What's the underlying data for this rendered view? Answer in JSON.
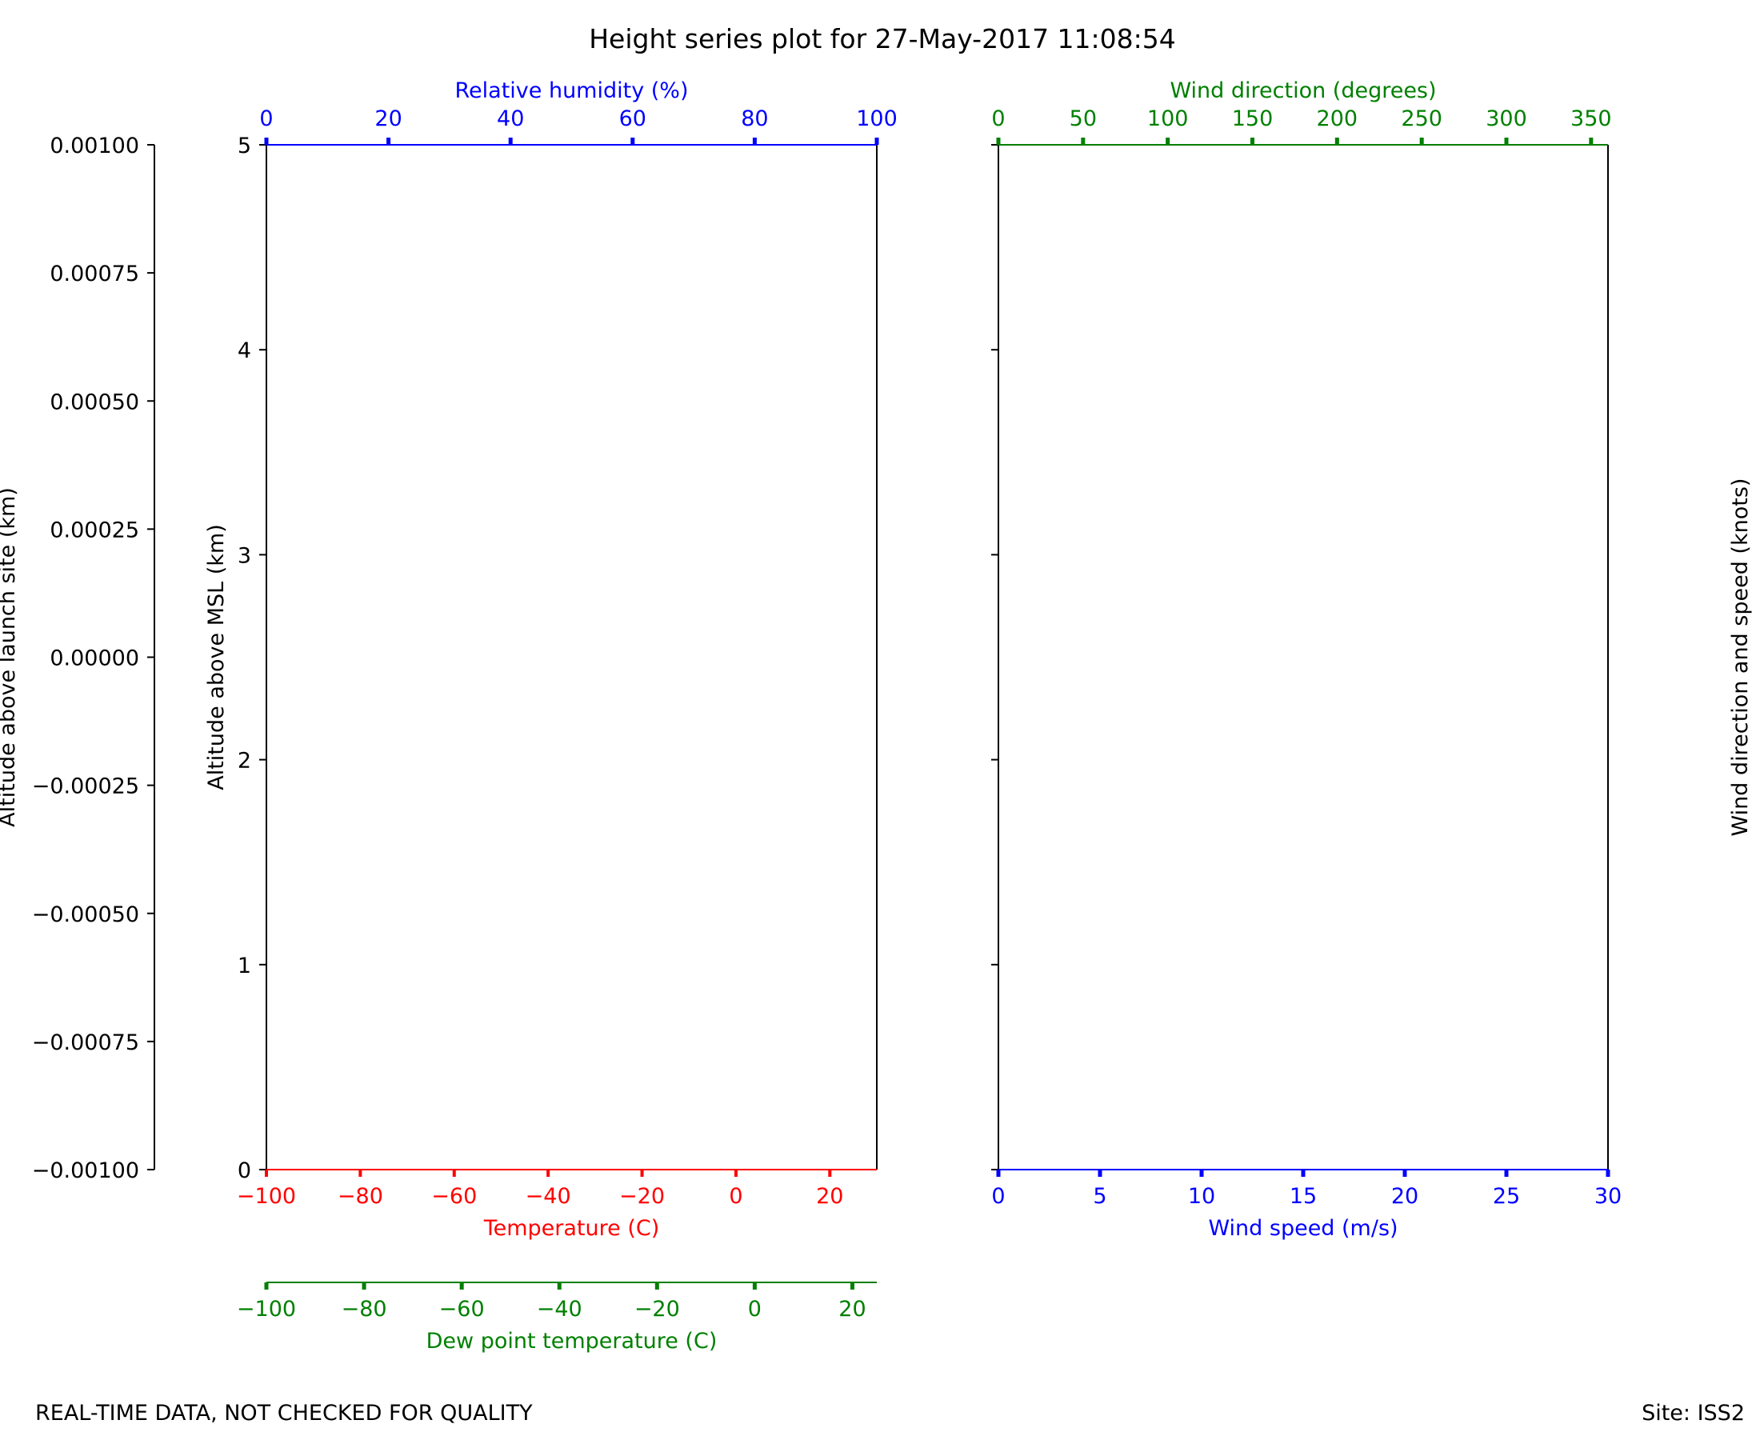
{
  "title": "Height series plot for 27-May-2017 11:08:54",
  "footer": {
    "left": "REAL-TIME DATA, NOT CHECKED FOR QUALITY",
    "right": "Site: ISS2"
  },
  "colors": {
    "black": "#000000",
    "red": "#ff0000",
    "blue": "#0000ff",
    "green": "#008000"
  },
  "chart_data": [
    {
      "type": "line",
      "panel": "thermodynamic",
      "series": [],
      "axes": {
        "launch_altitude": {
          "label": "Altitude above launch site (km)",
          "range": [
            -0.001,
            0.001
          ],
          "ticks": [
            -0.001,
            -0.00075,
            -0.0005,
            -0.00025,
            0,
            0.00025,
            0.0005,
            0.00075,
            0.001
          ],
          "tick_labels": [
            "−0.00100",
            "−0.00075",
            "−0.00050",
            "−0.00025",
            "0.00000",
            "0.00025",
            "0.00050",
            "0.00075",
            "0.00100"
          ]
        },
        "msl_altitude": {
          "label": "Altitude above MSL (km)",
          "range": [
            0,
            5
          ],
          "ticks": [
            0,
            1,
            2,
            3,
            4,
            5
          ],
          "tick_labels": [
            "0",
            "1",
            "2",
            "3",
            "4",
            "5"
          ]
        },
        "temperature": {
          "label": "Temperature (C)",
          "range": [
            -100,
            30
          ],
          "ticks": [
            -100,
            -80,
            -60,
            -40,
            -20,
            0,
            20
          ],
          "tick_labels": [
            "−100",
            "−80",
            "−60",
            "−40",
            "−20",
            "0",
            "20"
          ]
        },
        "dew_point": {
          "label": "Dew point temperature (C)",
          "range": [
            -100,
            25
          ],
          "ticks": [
            -100,
            -80,
            -60,
            -40,
            -20,
            0,
            20
          ],
          "tick_labels": [
            "−100",
            "−80",
            "−60",
            "−40",
            "−20",
            "0",
            "20"
          ]
        },
        "relative_humidity": {
          "label": "Relative humidity (%)",
          "range": [
            0,
            100
          ],
          "ticks": [
            0,
            20,
            40,
            60,
            80,
            100
          ],
          "tick_labels": [
            "0",
            "20",
            "40",
            "60",
            "80",
            "100"
          ]
        }
      }
    },
    {
      "type": "line",
      "panel": "wind",
      "series": [],
      "axes": {
        "wind_direction": {
          "label": "Wind direction (degrees)",
          "range": [
            0,
            360
          ],
          "ticks": [
            0,
            50,
            100,
            150,
            200,
            250,
            300,
            350
          ],
          "tick_labels": [
            "0",
            "50",
            "100",
            "150",
            "200",
            "250",
            "300",
            "350"
          ]
        },
        "wind_speed": {
          "label": "Wind speed (m/s)",
          "range": [
            0,
            30
          ],
          "ticks": [
            0,
            5,
            10,
            15,
            20,
            25,
            30
          ],
          "tick_labels": [
            "0",
            "5",
            "10",
            "15",
            "20",
            "25",
            "30"
          ]
        },
        "msl_altitude": {
          "range": [
            0,
            5
          ],
          "ticks": [
            0,
            1,
            2,
            3,
            4,
            5
          ]
        },
        "barbs_label": "Wind direction and speed (knots)"
      }
    }
  ]
}
